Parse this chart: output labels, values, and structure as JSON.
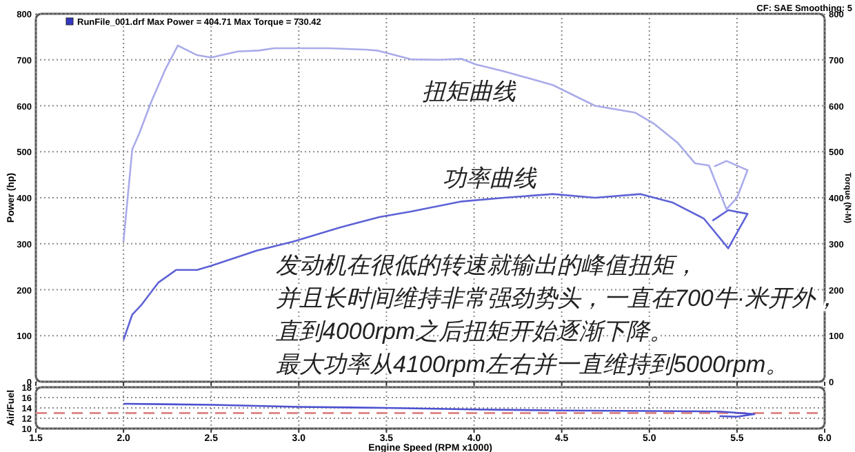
{
  "chart_data": [
    {
      "type": "line",
      "ylabel": "Power (hp)",
      "y2label": "Torque (N-M)",
      "xlim": [
        1.5,
        6.0
      ],
      "xticks": [
        1.5,
        2,
        2.5,
        3,
        3.5,
        4,
        4.5,
        5,
        5.5,
        6
      ],
      "ylim": [
        0,
        800
      ],
      "yticks": [
        0,
        100,
        200,
        300,
        400,
        500,
        600,
        700,
        800
      ],
      "y2lim": [
        0,
        800
      ],
      "y2ticks": [
        0,
        100,
        200,
        300,
        400,
        500,
        600,
        700,
        800
      ],
      "tick_labels": "y",
      "grid": true,
      "series": [
        {
          "color": "#5e62d6",
          "x": [
            2.0,
            2.05,
            2.1,
            2.2,
            2.3,
            2.42,
            2.5,
            2.76,
            2.97,
            3.23,
            3.46,
            3.64,
            3.93,
            4.17,
            4.45,
            4.69,
            4.95,
            5.13,
            5.31,
            5.45,
            5.56,
            5.45,
            5.36
          ],
          "values": [
            91,
            146,
            166,
            216,
            243,
            243,
            252,
            285,
            305,
            335,
            358,
            370,
            392,
            400,
            408,
            400,
            408,
            390,
            355,
            290,
            365,
            373,
            350
          ]
        },
        {
          "color": "#a9abea",
          "x": [
            2.0,
            2.05,
            2.09,
            2.16,
            2.24,
            2.31,
            2.42,
            2.5,
            2.65,
            2.77,
            2.86,
            3.17,
            3.38,
            3.45,
            3.64,
            3.8,
            3.93,
            4.01,
            4.17,
            4.45,
            4.69,
            4.92,
            5.03,
            5.16,
            5.26,
            5.34,
            5.44,
            5.5,
            5.56,
            5.53,
            5.44,
            5.37
          ],
          "values": [
            305,
            505,
            540,
            610,
            680,
            731,
            710,
            705,
            718,
            720,
            725,
            725,
            722,
            720,
            701,
            700,
            702,
            690,
            675,
            645,
            600,
            585,
            560,
            520,
            475,
            470,
            375,
            400,
            460,
            465,
            480,
            468
          ]
        }
      ],
      "annotations": [
        "RunFile_001.drf Max Power = 404.71    Max Torque = 730.42",
        "CF: SAE  Smoothing: 5",
        "扭矩曲线",
        "功率曲线",
        "发动机在很低的转速就输出的峰值扭矩，",
        "并且长时间维持非常强劲势头，一直在700牛·米开外，",
        "直到4000rpm之后扭矩开始逐渐下降。",
        "最大功率从4100rpm左右并一直维持到5000rpm。"
      ]
    },
    {
      "type": "line",
      "ylabel": "Air/Fuel",
      "xlabel": "Engine Speed (RPM x1000)",
      "xlim": [
        1.5,
        6.0
      ],
      "xticks": [
        1.5,
        {
          "value": 2,
          "label": "2.0"
        },
        2.5,
        {
          "value": 3,
          "label": "3.0"
        },
        3.5,
        {
          "value": 4,
          "label": "4.0"
        },
        4.5,
        {
          "value": 5,
          "label": "5.0"
        },
        5.5,
        {
          "value": 6,
          "label": "6.0"
        }
      ],
      "ylim": [
        10,
        18
      ],
      "yticks": [
        10,
        12,
        14,
        16,
        18
      ],
      "grid": true,
      "series": [
        {
          "color": "#4b50d0",
          "x": [
            2.0,
            2.5,
            3.0,
            3.5,
            4.0,
            4.5,
            5.0,
            5.4,
            5.6,
            5.5,
            5.4
          ],
          "values": [
            14.8,
            14.6,
            14.2,
            14.0,
            13.7,
            13.5,
            13.4,
            13.3,
            12.8,
            12.3,
            12.4
          ]
        }
      ],
      "ref_lines": [
        {
          "axis": "y",
          "value": 13,
          "color": "#e08a8a",
          "line_style": "dashed"
        }
      ]
    }
  ]
}
